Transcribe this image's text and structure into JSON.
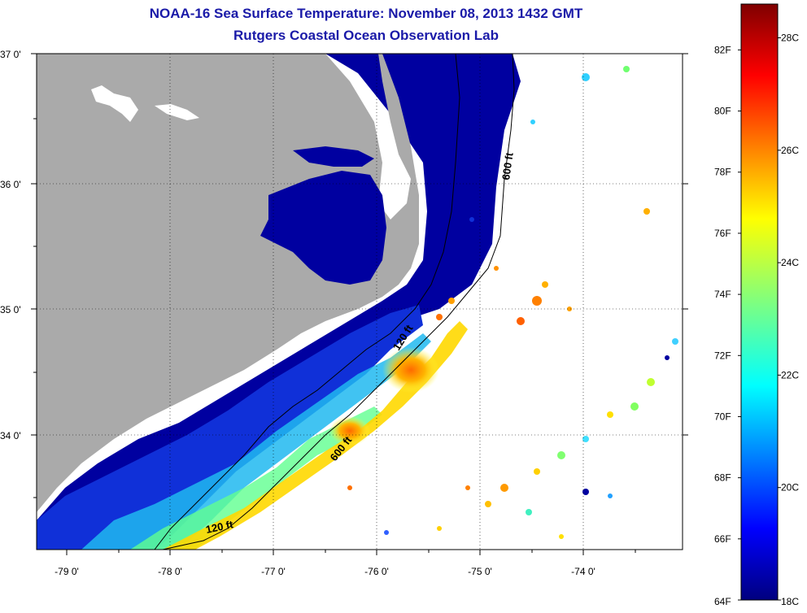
{
  "header": {
    "title": "NOAA-16 Sea Surface Temperature:  November 08, 2013 1432 GMT",
    "subtitle": "Rutgers Coastal Ocean Observation Lab"
  },
  "axes": {
    "lat_ticks": [
      "37 0'",
      "36 0'",
      "35 0'",
      "34 0'"
    ],
    "lon_ticks": [
      "-79 0'",
      "-78 0'",
      "-77 0'",
      "-76 0'",
      "-75 0'",
      "-74 0'"
    ]
  },
  "contours": {
    "c600_north": "600 ft",
    "c120_mid": "120 ft",
    "c600_south": "600 ft",
    "c120_south": "120 ft"
  },
  "colorbar": {
    "fahrenheit": [
      "82F",
      "80F",
      "78F",
      "76F",
      "74F",
      "72F",
      "70F",
      "68F",
      "66F",
      "64F"
    ],
    "celsius": [
      "28C",
      "26C",
      "24C",
      "22C",
      "20C",
      "18C"
    ],
    "range_f": [
      64,
      83.5
    ],
    "range_c": [
      18,
      28.6
    ]
  },
  "colors": {
    "land": "#aaaaaa",
    "cold": "#00007f",
    "warm": "#7f0000",
    "text": "#1a1aa8"
  }
}
